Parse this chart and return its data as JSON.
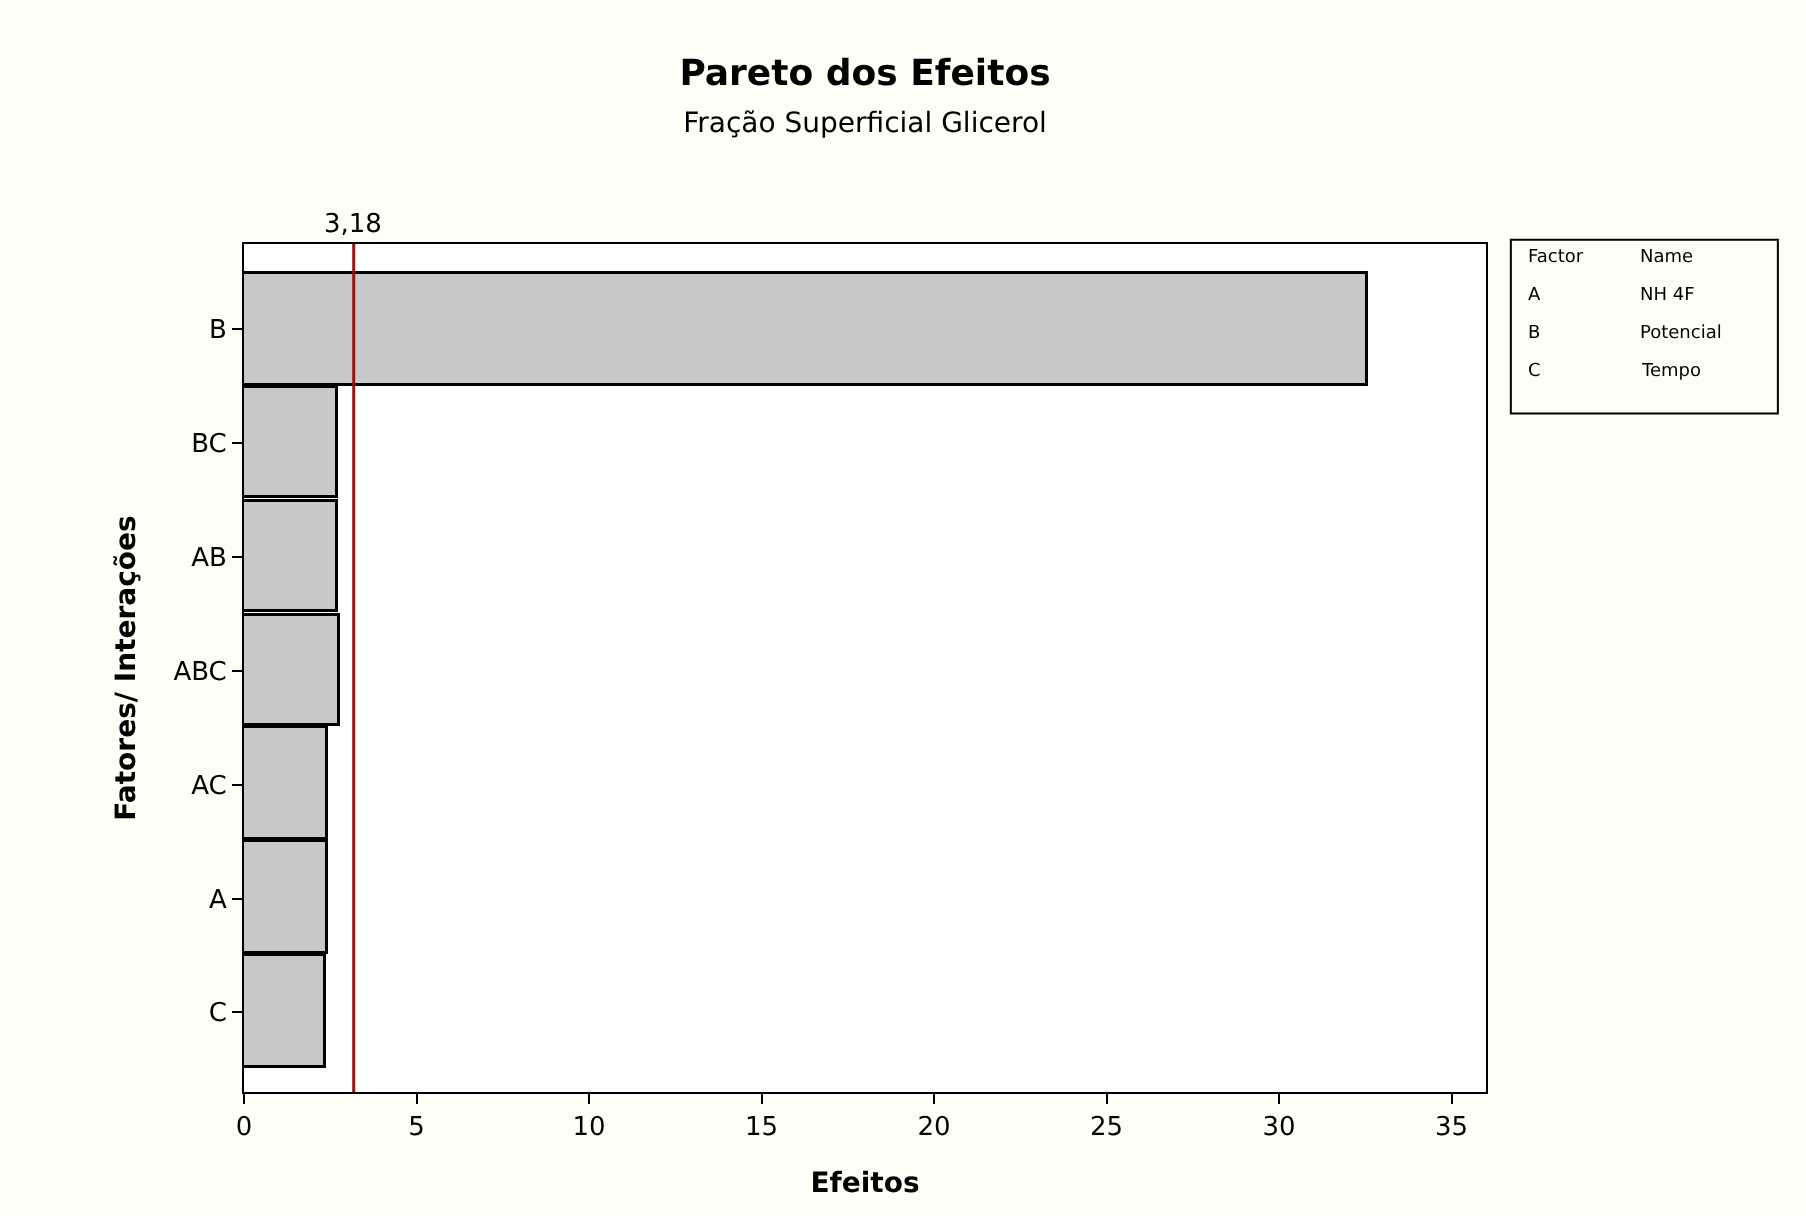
{
  "chart_data": {
    "type": "bar",
    "orientation": "horizontal",
    "title": "Pareto dos Efeitos",
    "subtitle": "Fração Superficial Glicerol",
    "xlabel": "Efeitos",
    "ylabel": "Fatores/ Interações",
    "categories": [
      "B",
      "BC",
      "AB",
      "ABC",
      "AC",
      "A",
      "C"
    ],
    "values": [
      32.6,
      2.74,
      2.75,
      2.78,
      2.43,
      2.45,
      2.36
    ],
    "color": "#c8c8c8",
    "xlim": [
      0,
      36
    ],
    "xticks": [
      0,
      5,
      10,
      15,
      20,
      25,
      30,
      35
    ],
    "ref_lines": [
      {
        "axis": "x",
        "value": 3.18,
        "label": "3,18",
        "color": "#a01010"
      }
    ],
    "annotations": [
      "Factor\tName",
      "A\tNH 4F",
      "B\tPotencial",
      "C\tTempo"
    ]
  }
}
